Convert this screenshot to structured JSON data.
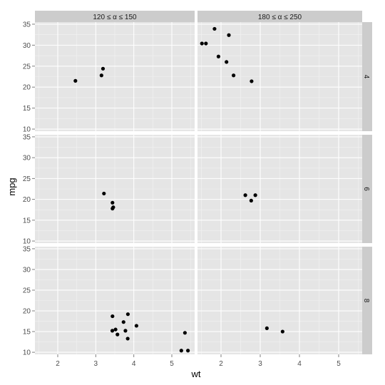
{
  "chart_data": {
    "type": "scatter",
    "layout": "faceted grid (2 columns x 3 rows)",
    "xlabel": "wt",
    "ylabel": "mpg",
    "xlim": [
      1.4,
      5.6
    ],
    "ylim": [
      9.5,
      35.5
    ],
    "xticks": [
      "2",
      "3",
      "4",
      "5"
    ],
    "yticks": [
      "10",
      "15",
      "20",
      "25",
      "30",
      "35"
    ],
    "grid": true,
    "column_strips": [
      "120 ≤ α ≤ 150",
      "180 ≤ α ≤ 250"
    ],
    "row_strips": [
      "4",
      "6",
      "8"
    ],
    "panels": [
      {
        "row": 0,
        "col": 0,
        "points": [
          [
            2.465,
            21.5
          ],
          [
            3.15,
            22.8
          ],
          [
            3.19,
            24.4
          ]
        ]
      },
      {
        "row": 0,
        "col": 1,
        "points": [
          [
            1.513,
            30.4
          ],
          [
            1.615,
            30.4
          ],
          [
            1.835,
            33.9
          ],
          [
            1.935,
            27.3
          ],
          [
            2.14,
            26.0
          ],
          [
            2.2,
            32.4
          ],
          [
            2.32,
            22.8
          ],
          [
            2.78,
            21.4
          ]
        ]
      },
      {
        "row": 1,
        "col": 0,
        "points": [
          [
            3.215,
            21.4
          ],
          [
            3.44,
            19.2
          ],
          [
            3.44,
            17.8
          ],
          [
            3.46,
            18.1
          ]
        ]
      },
      {
        "row": 1,
        "col": 1,
        "points": [
          [
            2.62,
            21.0
          ],
          [
            2.77,
            19.7
          ],
          [
            2.875,
            21.0
          ]
        ]
      },
      {
        "row": 2,
        "col": 0,
        "points": [
          [
            3.44,
            18.7
          ],
          [
            3.435,
            15.2
          ],
          [
            3.52,
            15.5
          ],
          [
            3.57,
            14.3
          ],
          [
            3.73,
            17.3
          ],
          [
            3.78,
            15.2
          ],
          [
            3.84,
            13.3
          ],
          [
            3.845,
            19.2
          ],
          [
            4.07,
            16.4
          ],
          [
            5.25,
            10.4
          ],
          [
            5.345,
            14.7
          ],
          [
            5.424,
            10.4
          ]
        ]
      },
      {
        "row": 2,
        "col": 1,
        "points": [
          [
            3.17,
            15.8
          ],
          [
            3.57,
            15.0
          ]
        ]
      }
    ]
  }
}
